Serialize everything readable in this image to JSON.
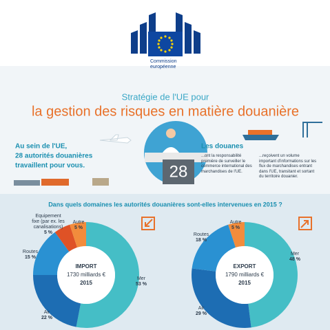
{
  "header": {
    "logo_text": [
      "Commission",
      "européenne"
    ],
    "title_line1": "Stratégie de l'UE pour",
    "title_line2": "la gestion des risques en matière douanière"
  },
  "intro": {
    "lines": [
      "Au sein de l'UE,",
      "28 autorités douanières",
      "travaillent pour vous."
    ],
    "counter": "28"
  },
  "customs": {
    "heading": "Les douanes",
    "col1": "...ont la responsabilité première de surveiller le commerce international des marchandises de l'UE.",
    "col2": "...reçoivent un volume important d'informations sur les flux de marchandises entrant dans l'UE, transitant et sortant du territoire douanier."
  },
  "question": "Dans quels domaines les autorités douanières sont-elles intervenues en 2015 ?",
  "chart_data": [
    {
      "type": "pie",
      "donut": true,
      "title": "IMPORT",
      "subtitle": "1730 milliards €",
      "year": "2015",
      "categories": [
        "Mer",
        "Air",
        "Routes",
        "Equipement fixe (par ex. les canalisations)",
        "Autre"
      ],
      "values": [
        53,
        22,
        15,
        5,
        5
      ],
      "value_labels": [
        "53 %",
        "22 %",
        "15 %",
        "5 %",
        "5 %"
      ],
      "colors": [
        "#45bec6",
        "#1d6db3",
        "#2a91d2",
        "#df5226",
        "#f28c3c"
      ]
    },
    {
      "type": "pie",
      "donut": true,
      "title": "EXPORT",
      "subtitle": "1790 milliards €",
      "year": "2015",
      "categories": [
        "Mer",
        "Air",
        "Routes",
        "Autre"
      ],
      "values": [
        48,
        29,
        18,
        5
      ],
      "value_labels": [
        "48 %",
        "29 %",
        "18 %",
        "5 %"
      ],
      "colors": [
        "#45bec6",
        "#1d6db3",
        "#2a91d2",
        "#f28c3c"
      ]
    }
  ]
}
